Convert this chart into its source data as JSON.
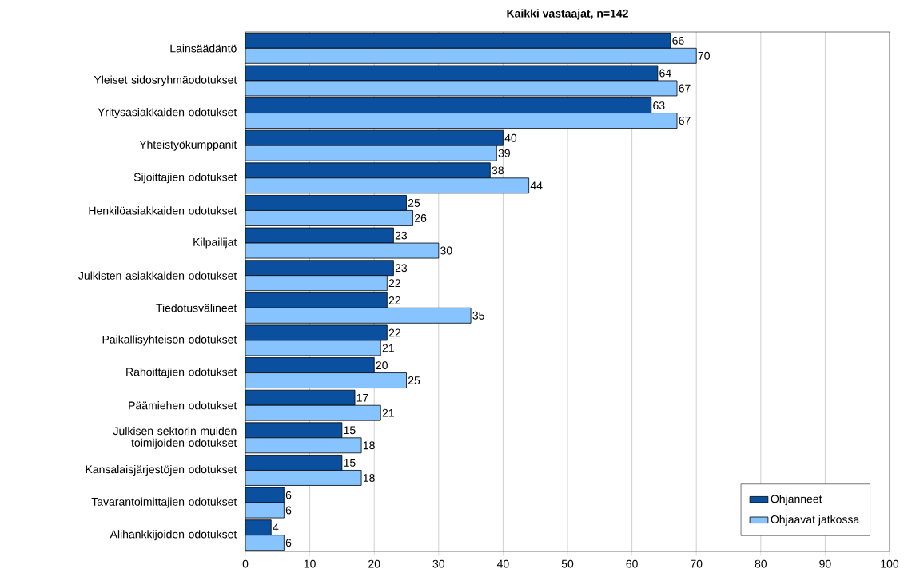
{
  "chart_data": {
    "type": "bar",
    "orientation": "horizontal",
    "title": "Kaikki vastaajat, n=142",
    "categories": [
      "Lainsäädäntö",
      "Yleiset sidosryhmäodotukset",
      "Yritysasiakkaiden odotukset",
      "Yhteistyökumppanit",
      "Sijoittajien odotukset",
      "Henkilöasiakkaiden odotukset",
      "Kilpailijat",
      "Julkisten asiakkaiden odotukset",
      "Tiedotusvälineet",
      "Paikallisyhteisön odotukset",
      "Rahoittajien odotukset",
      "Päämiehen odotukset",
      "Julkisen sektorin muiden toimijoiden odotukset",
      "Kansalaisjärjestöjen odotukset",
      "Tavarantoimittajien odotukset",
      "Alihankkijoiden odotukset"
    ],
    "series": [
      {
        "name": "Ohjanneet",
        "color": "#0b4f9f",
        "values": [
          66,
          64,
          63,
          40,
          38,
          25,
          23,
          23,
          22,
          22,
          20,
          17,
          15,
          15,
          6,
          4
        ]
      },
      {
        "name": "Ohjaavat jatkossa",
        "color": "#86c3ff",
        "values": [
          70,
          67,
          67,
          39,
          44,
          26,
          30,
          22,
          35,
          21,
          25,
          21,
          18,
          18,
          6,
          6
        ]
      }
    ],
    "xlim": [
      0,
      100
    ],
    "xticks": [
      0,
      10,
      20,
      30,
      40,
      50,
      60,
      70,
      80,
      90,
      100
    ],
    "grid": "x",
    "legend": "bottom right",
    "data_labels": true
  }
}
